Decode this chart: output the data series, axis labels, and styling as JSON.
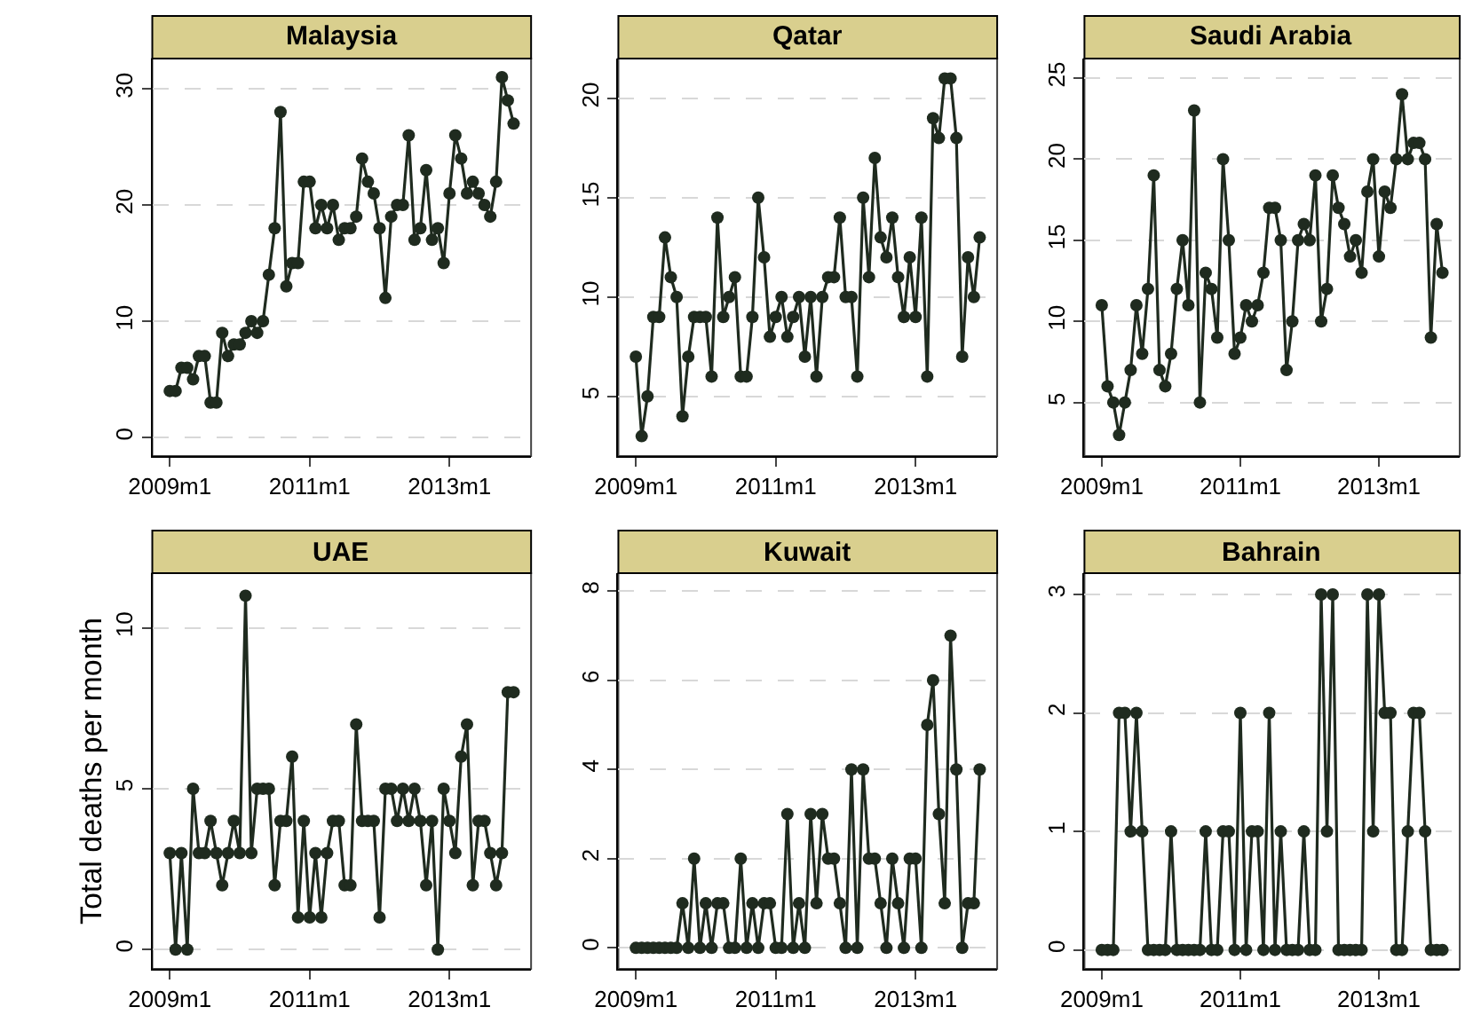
{
  "chart_data": [
    {
      "type": "line",
      "title": "Malaysia",
      "marker": "circle",
      "line_style": "solid",
      "grid": "y",
      "ylim": [
        -1.6,
        32.6
      ],
      "yticks": [
        0,
        10,
        20,
        30
      ],
      "categories": [
        "2009m1",
        null,
        null,
        null,
        null,
        null,
        null,
        null,
        null,
        null,
        null,
        null,
        null,
        null,
        null,
        null,
        null,
        null,
        null,
        null,
        null,
        null,
        null,
        null,
        "2011m1",
        null,
        null,
        null,
        null,
        null,
        null,
        null,
        null,
        null,
        null,
        null,
        null,
        null,
        null,
        null,
        null,
        null,
        null,
        null,
        null,
        null,
        null,
        null,
        "2013m1",
        null,
        null,
        null,
        null,
        null,
        null,
        null,
        null,
        null,
        null,
        null
      ],
      "series": [
        {
          "color": "#1f2b1f",
          "values": [
            4,
            4,
            6,
            6,
            5,
            7,
            7,
            3,
            3,
            9,
            7,
            8,
            8,
            9,
            10,
            9,
            10,
            14,
            18,
            28,
            13,
            15,
            15,
            22,
            22,
            18,
            20,
            18,
            20,
            17,
            18,
            18,
            19,
            24,
            22,
            21,
            18,
            12,
            19,
            20,
            20,
            26,
            17,
            18,
            23,
            17,
            18,
            15,
            21,
            26,
            24,
            21,
            22,
            21,
            20,
            19,
            22,
            31,
            29,
            27
          ]
        }
      ]
    },
    {
      "type": "line",
      "title": "Qatar",
      "marker": "circle",
      "line_style": "solid",
      "grid": "y",
      "ylim": [
        2,
        22
      ],
      "yticks": [
        5,
        10,
        15,
        20
      ],
      "categories": [
        "2009m1",
        null,
        null,
        null,
        null,
        null,
        null,
        null,
        null,
        null,
        null,
        null,
        null,
        null,
        null,
        null,
        null,
        null,
        null,
        null,
        null,
        null,
        null,
        null,
        "2011m1",
        null,
        null,
        null,
        null,
        null,
        null,
        null,
        null,
        null,
        null,
        null,
        null,
        null,
        null,
        null,
        null,
        null,
        null,
        null,
        null,
        null,
        null,
        null,
        "2013m1",
        null,
        null,
        null,
        null,
        null,
        null,
        null,
        null,
        null,
        null,
        null
      ],
      "series": [
        {
          "color": "#1f2b1f",
          "values": [
            7,
            3,
            5,
            9,
            9,
            13,
            11,
            10,
            4,
            7,
            9,
            9,
            9,
            6,
            14,
            9,
            10,
            11,
            6,
            6,
            9,
            15,
            12,
            8,
            9,
            10,
            8,
            9,
            10,
            7,
            10,
            6,
            10,
            11,
            11,
            14,
            10,
            10,
            6,
            15,
            11,
            17,
            13,
            12,
            14,
            11,
            9,
            12,
            9,
            14,
            6,
            19,
            18,
            21,
            21,
            18,
            7,
            12,
            10,
            13
          ]
        }
      ]
    },
    {
      "type": "line",
      "title": "Saudi Arabia",
      "marker": "circle",
      "line_style": "solid",
      "grid": "y",
      "ylim": [
        1.7,
        26.2
      ],
      "yticks": [
        5,
        10,
        15,
        20,
        25
      ],
      "categories": [
        "2009m1",
        null,
        null,
        null,
        null,
        null,
        null,
        null,
        null,
        null,
        null,
        null,
        null,
        null,
        null,
        null,
        null,
        null,
        null,
        null,
        null,
        null,
        null,
        null,
        "2011m1",
        null,
        null,
        null,
        null,
        null,
        null,
        null,
        null,
        null,
        null,
        null,
        null,
        null,
        null,
        null,
        null,
        null,
        null,
        null,
        null,
        null,
        null,
        null,
        "2013m1",
        null,
        null,
        null,
        null,
        null,
        null,
        null,
        null,
        null,
        null,
        null
      ],
      "series": [
        {
          "color": "#1f2b1f",
          "values": [
            11,
            6,
            5,
            3,
            5,
            7,
            11,
            8,
            12,
            19,
            7,
            6,
            8,
            12,
            15,
            11,
            23,
            5,
            13,
            12,
            9,
            20,
            15,
            8,
            9,
            11,
            10,
            11,
            13,
            17,
            17,
            15,
            7,
            10,
            15,
            16,
            15,
            19,
            10,
            12,
            19,
            17,
            16,
            14,
            15,
            13,
            18,
            20,
            14,
            18,
            17,
            20,
            24,
            20,
            21,
            21,
            20,
            9,
            16,
            13
          ]
        }
      ]
    },
    {
      "type": "line",
      "title": "UAE",
      "ylabel": "Total deaths per month",
      "marker": "circle",
      "line_style": "solid",
      "grid": "y",
      "ylim": [
        -0.6,
        11.7
      ],
      "yticks": [
        0,
        5,
        10
      ],
      "categories": [
        "2009m1",
        null,
        null,
        null,
        null,
        null,
        null,
        null,
        null,
        null,
        null,
        null,
        null,
        null,
        null,
        null,
        null,
        null,
        null,
        null,
        null,
        null,
        null,
        null,
        "2011m1",
        null,
        null,
        null,
        null,
        null,
        null,
        null,
        null,
        null,
        null,
        null,
        null,
        null,
        null,
        null,
        null,
        null,
        null,
        null,
        null,
        null,
        null,
        null,
        "2013m1",
        null,
        null,
        null,
        null,
        null,
        null,
        null,
        null,
        null,
        null,
        null
      ],
      "series": [
        {
          "color": "#1f2b1f",
          "values": [
            3,
            0,
            3,
            0,
            5,
            3,
            3,
            4,
            3,
            2,
            3,
            4,
            3,
            11,
            3,
            5,
            5,
            5,
            2,
            4,
            4,
            6,
            1,
            4,
            1,
            3,
            1,
            3,
            4,
            4,
            2,
            2,
            7,
            4,
            4,
            4,
            1,
            5,
            5,
            4,
            5,
            4,
            5,
            4,
            2,
            4,
            0,
            5,
            4,
            3,
            6,
            7,
            2,
            4,
            4,
            3,
            2,
            3,
            8,
            8
          ]
        }
      ]
    },
    {
      "type": "line",
      "title": "Kuwait",
      "marker": "circle",
      "line_style": "solid",
      "grid": "y",
      "ylim": [
        -0.47,
        8.4
      ],
      "yticks": [
        0,
        2,
        4,
        6,
        8
      ],
      "categories": [
        "2009m1",
        null,
        null,
        null,
        null,
        null,
        null,
        null,
        null,
        null,
        null,
        null,
        null,
        null,
        null,
        null,
        null,
        null,
        null,
        null,
        null,
        null,
        null,
        null,
        "2011m1",
        null,
        null,
        null,
        null,
        null,
        null,
        null,
        null,
        null,
        null,
        null,
        null,
        null,
        null,
        null,
        null,
        null,
        null,
        null,
        null,
        null,
        null,
        null,
        "2013m1",
        null,
        null,
        null,
        null,
        null,
        null,
        null,
        null,
        null,
        null,
        null
      ],
      "series": [
        {
          "color": "#1f2b1f",
          "values": [
            0,
            0,
            0,
            0,
            0,
            0,
            0,
            0,
            1,
            0,
            2,
            0,
            1,
            0,
            1,
            1,
            0,
            0,
            2,
            0,
            1,
            0,
            1,
            1,
            0,
            0,
            3,
            0,
            1,
            0,
            3,
            1,
            3,
            2,
            2,
            1,
            0,
            4,
            0,
            4,
            2,
            2,
            1,
            0,
            2,
            1,
            0,
            2,
            2,
            0,
            5,
            6,
            3,
            1,
            7,
            4,
            0,
            1,
            1,
            4
          ]
        }
      ]
    },
    {
      "type": "line",
      "title": "Bahrain",
      "marker": "circle",
      "line_style": "solid",
      "grid": "y",
      "ylim": [
        -0.16,
        3.18
      ],
      "yticks": [
        0,
        1,
        2,
        3
      ],
      "categories": [
        "2009m1",
        null,
        null,
        null,
        null,
        null,
        null,
        null,
        null,
        null,
        null,
        null,
        null,
        null,
        null,
        null,
        null,
        null,
        null,
        null,
        null,
        null,
        null,
        null,
        "2011m1",
        null,
        null,
        null,
        null,
        null,
        null,
        null,
        null,
        null,
        null,
        null,
        null,
        null,
        null,
        null,
        null,
        null,
        null,
        null,
        null,
        null,
        null,
        null,
        "2013m1",
        null,
        null,
        null,
        null,
        null,
        null,
        null,
        null,
        null,
        null,
        null
      ],
      "series": [
        {
          "color": "#1f2b1f",
          "values": [
            0,
            0,
            0,
            2,
            2,
            1,
            2,
            1,
            0,
            0,
            0,
            0,
            1,
            0,
            0,
            0,
            0,
            0,
            1,
            0,
            0,
            1,
            1,
            0,
            2,
            0,
            1,
            1,
            0,
            2,
            0,
            1,
            0,
            0,
            0,
            1,
            0,
            0,
            3,
            1,
            3,
            0,
            0,
            0,
            0,
            0,
            3,
            1,
            3,
            2,
            2,
            0,
            0,
            1,
            2,
            2,
            1,
            0,
            0,
            0
          ]
        }
      ]
    }
  ]
}
